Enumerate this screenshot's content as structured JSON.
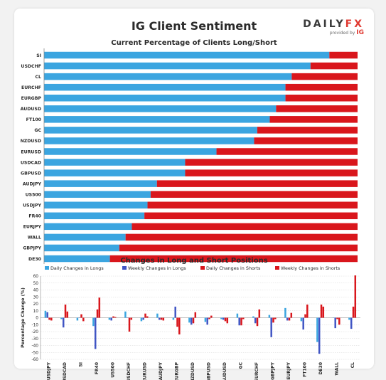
{
  "header": {
    "title": "IG Client Sentiment",
    "logo_text_left": "DAILY",
    "logo_text_right": "FX",
    "logo_sub": "provided by",
    "logo_sub_brand": "IG"
  },
  "colors": {
    "long": "#3ba5e0",
    "short": "#d9161c",
    "weekly_long": "#4055c4",
    "weekly_short": "#d9161c"
  },
  "chart_data": [
    {
      "type": "bar",
      "orientation": "horizontal",
      "stacked": true,
      "title": "Current Percentage of Clients Long/Short",
      "categories": [
        "SI",
        "USDCHF",
        "CL",
        "EURCHF",
        "EURGBP",
        "AUDUSD",
        "FT100",
        "GC",
        "NZDUSD",
        "EURUSD",
        "USDCAD",
        "GBPUSD",
        "AUDJPY",
        "US500",
        "USDJPY",
        "FR40",
        "EURJPY",
        "WALL",
        "GBPJPY",
        "DE30"
      ],
      "series": [
        {
          "values": [
            91,
            85,
            79,
            77,
            77,
            74,
            72,
            68,
            67,
            55,
            45,
            45,
            36,
            34,
            33,
            32,
            28,
            26,
            24,
            21
          ]
        },
        {
          "values": [
            9,
            15,
            21,
            23,
            23,
            26,
            28,
            32,
            33,
            45,
            55,
            55,
            64,
            66,
            67,
            68,
            72,
            74,
            76,
            79
          ]
        }
      ],
      "xlim": [
        0,
        100
      ]
    },
    {
      "type": "bar",
      "title": "Changes in Long and Short Positions",
      "ylabel": "Percentage Change (%)",
      "ylim": [
        -60,
        60
      ],
      "yticks": [
        60,
        50,
        40,
        30,
        20,
        10,
        0,
        -10,
        -20,
        -30,
        -40,
        -50,
        -60
      ],
      "legend_position": "top",
      "categories": [
        "USDJPY",
        "USDCAD",
        "SI",
        "FR40",
        "US500",
        "USDCHF",
        "EURUSD",
        "AUDJPY",
        "EURGBP",
        "NZDUSD",
        "GBPUSD",
        "AUDUSD",
        "GC",
        "EURCHF",
        "GBPJPY",
        "EURJPY",
        "FT100",
        "DE30",
        "WALL",
        "CL"
      ],
      "series": [
        {
          "name": "Daily Changes in Longs",
          "values": [
            10,
            -2,
            -4,
            -12,
            -3,
            9,
            -5,
            6,
            -3,
            -7,
            -6,
            -2,
            6,
            2,
            4,
            14,
            -5,
            -35,
            0,
            -3
          ]
        },
        {
          "name": "Weekly Changes in Longs",
          "values": [
            8,
            -14,
            0,
            -45,
            -4,
            0,
            -3,
            -3,
            16,
            -10,
            -10,
            -3,
            -11,
            -8,
            -28,
            -4,
            -17,
            -52,
            -15,
            -16
          ]
        },
        {
          "name": "Daily Changes in Shorts",
          "values": [
            -3,
            19,
            5,
            12,
            2,
            -20,
            6,
            -3,
            -13,
            -8,
            -2,
            -5,
            -11,
            -12,
            -7,
            -4,
            5,
            19,
            -2,
            16
          ]
        },
        {
          "name": "Weekly Changes in Shorts",
          "values": [
            -4,
            9,
            -5,
            29,
            1,
            -3,
            2,
            -4,
            -24,
            8,
            3,
            -8,
            -2,
            12,
            -2,
            7,
            19,
            16,
            -10,
            61
          ]
        }
      ]
    }
  ]
}
